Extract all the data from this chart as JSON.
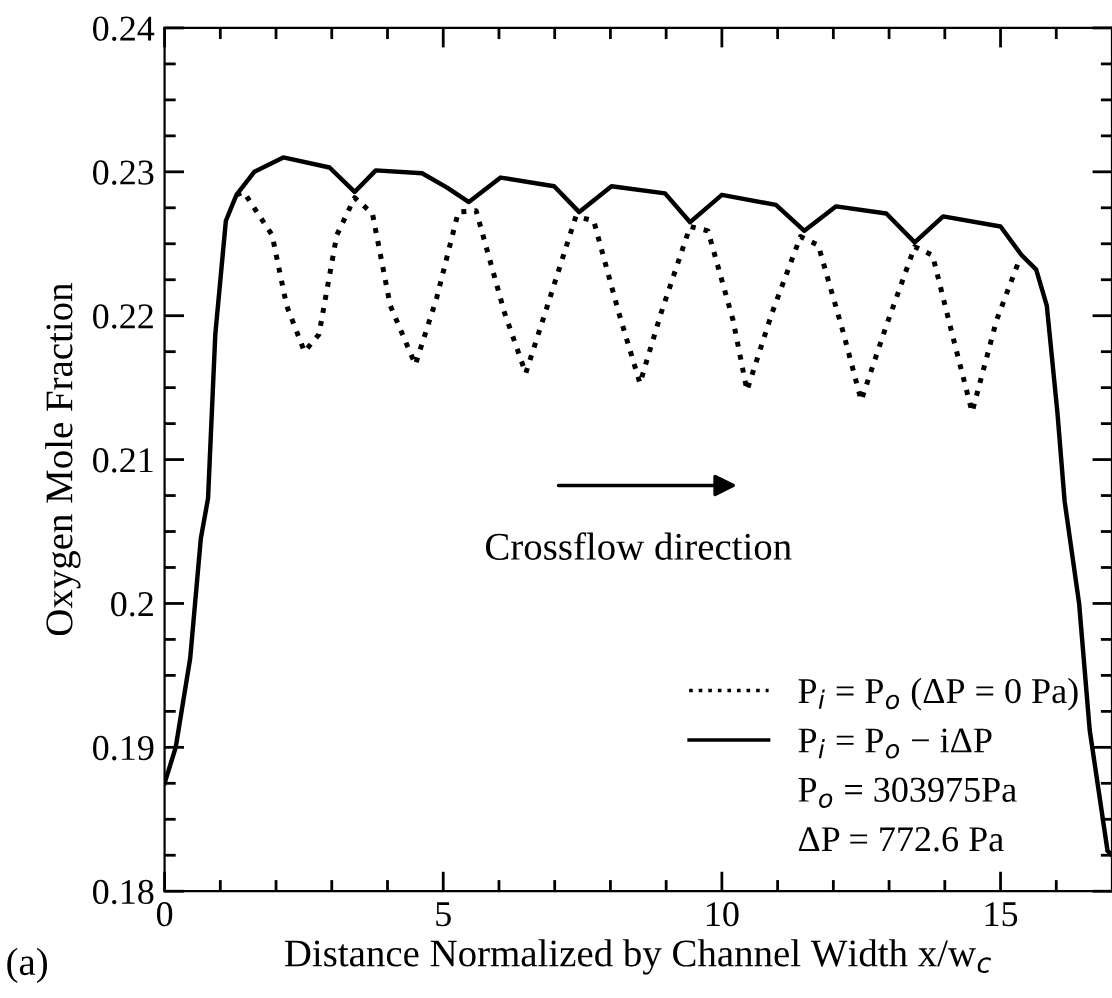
{
  "chart_data": {
    "type": "line",
    "xlabel": "Distance Normalized by Channel Width x/w$_{c}$",
    "ylabel": "Oxygen Mole Fraction",
    "xlim": [
      0,
      17
    ],
    "ylim": [
      0.18,
      0.24
    ],
    "xticks": [
      0,
      {
        "value": 1,
        "label": null
      },
      {
        "value": 2,
        "label": null
      },
      {
        "value": 3,
        "label": null
      },
      {
        "value": 4,
        "label": null
      },
      5,
      {
        "value": 6,
        "label": null
      },
      {
        "value": 7,
        "label": null
      },
      {
        "value": 8,
        "label": null
      },
      {
        "value": 9,
        "label": null
      },
      10,
      {
        "value": 11,
        "label": null
      },
      {
        "value": 12,
        "label": null
      },
      {
        "value": 13,
        "label": null
      },
      {
        "value": 14,
        "label": null
      },
      15,
      {
        "value": 16,
        "label": null
      }
    ],
    "yticks": [
      0.18,
      {
        "value": 0.1825,
        "label": null
      },
      {
        "value": 0.185,
        "label": null
      },
      {
        "value": 0.1875,
        "label": null
      },
      0.19,
      {
        "value": 0.1925,
        "label": null
      },
      {
        "value": 0.195,
        "label": null
      },
      {
        "value": 0.1975,
        "label": null
      },
      {
        "value": 0.2,
        "label": "0.2"
      },
      {
        "value": 0.2025,
        "label": null
      },
      {
        "value": 0.205,
        "label": null
      },
      {
        "value": 0.2075,
        "label": null
      },
      0.21,
      {
        "value": 0.2125,
        "label": null
      },
      {
        "value": 0.215,
        "label": null
      },
      {
        "value": 0.2175,
        "label": null
      },
      0.22,
      {
        "value": 0.2225,
        "label": null
      },
      {
        "value": 0.225,
        "label": null
      },
      {
        "value": 0.2275,
        "label": null
      },
      0.23,
      {
        "value": 0.2325,
        "label": null
      },
      {
        "value": 0.235,
        "label": null
      },
      {
        "value": 0.2375,
        "label": null
      },
      0.24
    ],
    "grid": false,
    "legend": "bottom right",
    "marker": "none",
    "series": [
      {
        "name": "P$_{i}$ = P$_{o}$ (ΔP = 0 Pa)",
        "color": "#000000",
        "line_style": "dotted",
        "x": [
          1.29,
          1.42,
          1.93,
          2.19,
          2.51,
          2.77,
          3.09,
          3.41,
          3.73,
          4.05,
          4.5,
          4.88,
          5.27,
          5.59,
          6.1,
          6.48,
          6.87,
          7.38,
          7.7,
          8.15,
          8.53,
          8.91,
          9.43,
          9.75,
          10.2,
          10.45,
          10.9,
          11.41,
          11.73,
          12.18,
          12.5,
          12.95,
          13.46,
          13.78,
          14.16,
          14.49,
          14.93,
          15.32
        ],
        "values": [
          0.2284,
          0.2286,
          0.2256,
          0.2207,
          0.2175,
          0.2187,
          0.2256,
          0.2282,
          0.2271,
          0.2207,
          0.2166,
          0.2212,
          0.2272,
          0.2273,
          0.2202,
          0.216,
          0.2207,
          0.2269,
          0.2266,
          0.2202,
          0.2153,
          0.2202,
          0.2262,
          0.2259,
          0.2197,
          0.2148,
          0.2202,
          0.2255,
          0.2249,
          0.2188,
          0.2141,
          0.2193,
          0.2248,
          0.2242,
          0.2183,
          0.2133,
          0.2197,
          0.2237
        ]
      },
      {
        "name": "P$_{i}$ = P$_{o}$ − iΔP",
        "color": "#000000",
        "line_style": "solid",
        "x": [
          0,
          0.2,
          0.46,
          0.65,
          0.78,
          0.91,
          1.1,
          1.29,
          1.61,
          2.13,
          2.96,
          3.41,
          3.79,
          4.62,
          5.07,
          5.46,
          6.03,
          6.99,
          7.44,
          8.02,
          8.98,
          9.43,
          10.0,
          10.97,
          11.48,
          12.05,
          12.95,
          13.46,
          13.97,
          15.0,
          15.38,
          15.64,
          15.83,
          16.02,
          16.15,
          16.41,
          16.6,
          16.92,
          17
        ],
        "values": [
          0.1875,
          0.19,
          0.1962,
          0.2045,
          0.2073,
          0.2187,
          0.2266,
          0.2284,
          0.23,
          0.231,
          0.2303,
          0.2286,
          0.2301,
          0.2299,
          0.2289,
          0.2279,
          0.2296,
          0.229,
          0.2272,
          0.229,
          0.2285,
          0.2265,
          0.2284,
          0.2277,
          0.2259,
          0.2276,
          0.2271,
          0.2251,
          0.2269,
          0.2262,
          0.2242,
          0.2232,
          0.2207,
          0.2133,
          0.2071,
          0.2,
          0.1912,
          0.1828,
          0.1825
        ]
      }
    ],
    "annotations": [
      "Crossflow direction",
      "P$_{o}$ = 303975Pa",
      "ΔP = 772.6 Pa",
      "(a)"
    ]
  }
}
